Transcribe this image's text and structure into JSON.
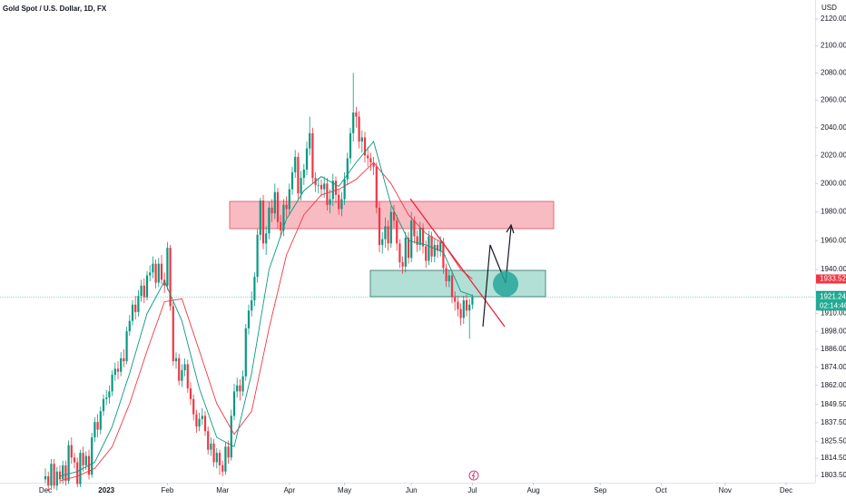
{
  "chart_data": {
    "type": "candlestick",
    "title": "Gold Spot / U.S. Dollar, 1D, FX",
    "y_unit": "USD",
    "log": true,
    "grid": false,
    "up_color": "#089981",
    "down_color": "#f23645",
    "xlim": [
      -15.625,
      265
    ],
    "ylim": [
      1798.9,
      2134.4
    ],
    "xticks": [
      {
        "value": 0,
        "label": "Dec"
      },
      {
        "value": 21,
        "label": "2023"
      },
      {
        "value": 42,
        "label": "Feb"
      },
      {
        "value": 61,
        "label": "Mar"
      },
      {
        "value": 84,
        "label": "Apr"
      },
      {
        "value": 103,
        "label": "May"
      },
      {
        "value": 126,
        "label": "Jun"
      },
      {
        "value": 147,
        "label": "Jul"
      },
      {
        "value": 168,
        "label": "Aug"
      },
      {
        "value": 191,
        "label": "Sep"
      },
      {
        "value": 212,
        "label": "Oct"
      },
      {
        "value": 234,
        "label": "Nov"
      },
      {
        "value": 255,
        "label": "Dec"
      }
    ],
    "yticks": [
      {
        "value": 2120,
        "label": "2120.00"
      },
      {
        "value": 2100,
        "label": "2100.00"
      },
      {
        "value": 2080,
        "label": "2080.00"
      },
      {
        "value": 2060,
        "label": "2060.00"
      },
      {
        "value": 2040,
        "label": "2040.00"
      },
      {
        "value": 2020,
        "label": "2020.00"
      },
      {
        "value": 2000,
        "label": "2000.00"
      },
      {
        "value": 1980,
        "label": "1980.00"
      },
      {
        "value": 1960,
        "label": "1960.00"
      },
      {
        "value": 1940,
        "label": "1940.00"
      },
      {
        "value": 1910,
        "label": "1910.00"
      },
      {
        "value": 1898,
        "label": "1898.00"
      },
      {
        "value": 1886,
        "label": "1886.00"
      },
      {
        "value": 1874,
        "label": "1874.00"
      },
      {
        "value": 1862,
        "label": "1862.00"
      },
      {
        "value": 1849.5,
        "label": "1849.50"
      },
      {
        "value": 1837.5,
        "label": "1837.50"
      },
      {
        "value": 1825.5,
        "label": "1825.50"
      },
      {
        "value": 1814.5,
        "label": "1814.50"
      },
      {
        "value": 1803.5,
        "label": "1803.50"
      }
    ],
    "open": [
      1801,
      1803,
      1797,
      1811,
      1797,
      1806,
      1801,
      1810,
      1800,
      1823,
      1815,
      1812,
      1798,
      1818,
      1810,
      1816,
      1804,
      1828,
      1838,
      1833,
      1845,
      1853,
      1854,
      1858,
      1869,
      1873,
      1871,
      1880,
      1878,
      1898,
      1905,
      1916,
      1911,
      1922,
      1929,
      1921,
      1936,
      1938,
      1944,
      1931,
      1944,
      1933,
      1929,
      1955,
      1915,
      1878,
      1880,
      1865,
      1872,
      1876,
      1860,
      1853,
      1843,
      1835,
      1840,
      1842,
      1832,
      1820,
      1824,
      1812,
      1818,
      1810,
      1806,
      1822,
      1815,
      1842,
      1858,
      1862,
      1858,
      1868,
      1900,
      1912,
      1919,
      1935,
      1964,
      1988,
      1958,
      1965,
      1983,
      1979,
      1994,
      1973,
      1967,
      1985,
      1982,
      1996,
      2008,
      2019,
      1993,
      2004,
      2010,
      2025,
      2036,
      2004,
      1999,
      1999,
      1996,
      2000,
      1985,
      1989,
      2002,
      1992,
      1982,
      1989,
      2003,
      2018,
      2036,
      2051,
      2048,
      2030,
      2033,
      2020,
      2018,
      2015,
      2012,
      1983,
      1957,
      1961,
      1970,
      1958,
      1980,
      1974,
      1958,
      1945,
      1942,
      1962,
      1948,
      1974,
      1963,
      1957,
      1969,
      1956,
      1946,
      1963,
      1949,
      1957,
      1953,
      1959,
      1941,
      1932,
      1936,
      1921,
      1918,
      1913,
      1907,
      1919,
      1912,
      1916
    ],
    "high": [
      1808,
      1806,
      1814,
      1814,
      1809,
      1810,
      1813,
      1813,
      1826,
      1828,
      1818,
      1815,
      1820,
      1822,
      1819,
      1820,
      1831,
      1841,
      1843,
      1848,
      1856,
      1859,
      1862,
      1872,
      1877,
      1878,
      1884,
      1886,
      1901,
      1909,
      1919,
      1922,
      1926,
      1933,
      1934,
      1939,
      1943,
      1949,
      1947,
      1948,
      1950,
      1938,
      1959,
      1957,
      1918,
      1884,
      1883,
      1876,
      1880,
      1879,
      1864,
      1856,
      1846,
      1844,
      1847,
      1845,
      1835,
      1828,
      1827,
      1821,
      1820,
      1813,
      1825,
      1826,
      1846,
      1863,
      1867,
      1866,
      1872,
      1903,
      1916,
      1925,
      1938,
      1968,
      1990,
      1992,
      1970,
      1987,
      1989,
      2000,
      1997,
      1978,
      1989,
      1991,
      2000,
      2012,
      2024,
      2022,
      2009,
      2014,
      2030,
      2048,
      2040,
      2008,
      2004,
      2003,
      2005,
      2004,
      1996,
      2007,
      2005,
      1996,
      1994,
      2008,
      2022,
      2040,
      2080,
      2055,
      2052,
      2038,
      2037,
      2026,
      2022,
      2019,
      2015,
      1987,
      1966,
      1976,
      1974,
      1984,
      1985,
      1978,
      1961,
      1949,
      1966,
      1966,
      1980,
      1977,
      1967,
      1973,
      1972,
      1960,
      1967,
      1966,
      1961,
      1960,
      1963,
      1962,
      1944,
      1940,
      1939,
      1925,
      1922,
      1917,
      1922,
      1923,
      1920,
      1923
    ],
    "low": [
      1797,
      1794,
      1795,
      1795,
      1794,
      1798,
      1798,
      1797,
      1798,
      1811,
      1808,
      1796,
      1796,
      1806,
      1807,
      1801,
      1802,
      1825,
      1828,
      1830,
      1842,
      1849,
      1850,
      1855,
      1865,
      1866,
      1868,
      1874,
      1876,
      1895,
      1902,
      1906,
      1908,
      1918,
      1917,
      1919,
      1932,
      1934,
      1927,
      1928,
      1930,
      1924,
      1926,
      1912,
      1875,
      1873,
      1862,
      1861,
      1868,
      1857,
      1849,
      1839,
      1831,
      1832,
      1836,
      1829,
      1817,
      1816,
      1809,
      1808,
      1804,
      1803,
      1804,
      1811,
      1813,
      1839,
      1854,
      1852,
      1855,
      1865,
      1896,
      1908,
      1915,
      1931,
      1960,
      1954,
      1950,
      1961,
      1973,
      1975,
      1968,
      1962,
      1963,
      1976,
      1978,
      1992,
      2004,
      1989,
      1988,
      1999,
      2006,
      2020,
      2000,
      1994,
      1993,
      1991,
      1990,
      1981,
      1979,
      1984,
      1986,
      1978,
      1977,
      1985,
      1999,
      2014,
      2030,
      2040,
      2025,
      2022,
      2015,
      2012,
      2009,
      2006,
      1979,
      1952,
      1951,
      1955,
      1953,
      1955,
      1969,
      1953,
      1941,
      1937,
      1938,
      1944,
      1945,
      1958,
      1952,
      1953,
      1951,
      1941,
      1943,
      1945,
      1945,
      1948,
      1949,
      1937,
      1928,
      1928,
      1917,
      1912,
      1908,
      1902,
      1903,
      1908,
      1893,
      1913
    ],
    "close": [
      1803,
      1797,
      1811,
      1797,
      1806,
      1801,
      1810,
      1800,
      1823,
      1815,
      1812,
      1798,
      1818,
      1810,
      1816,
      1804,
      1828,
      1838,
      1833,
      1845,
      1853,
      1854,
      1858,
      1869,
      1873,
      1871,
      1880,
      1878,
      1898,
      1905,
      1916,
      1911,
      1922,
      1929,
      1921,
      1936,
      1938,
      1944,
      1931,
      1944,
      1933,
      1929,
      1955,
      1915,
      1878,
      1880,
      1865,
      1872,
      1876,
      1860,
      1853,
      1843,
      1835,
      1840,
      1842,
      1832,
      1820,
      1824,
      1812,
      1818,
      1810,
      1806,
      1822,
      1815,
      1842,
      1858,
      1862,
      1858,
      1868,
      1900,
      1912,
      1919,
      1935,
      1964,
      1988,
      1958,
      1965,
      1983,
      1979,
      1994,
      1973,
      1967,
      1985,
      1982,
      1996,
      2008,
      2019,
      1993,
      2004,
      2010,
      2025,
      2036,
      2004,
      1999,
      1999,
      1996,
      2000,
      1985,
      1989,
      2002,
      1992,
      1982,
      1989,
      2003,
      2018,
      2036,
      2051,
      2048,
      2030,
      2033,
      2020,
      2018,
      2015,
      2012,
      1983,
      1957,
      1961,
      1970,
      1958,
      1980,
      1974,
      1958,
      1945,
      1942,
      1962,
      1948,
      1974,
      1963,
      1957,
      1969,
      1956,
      1946,
      1963,
      1949,
      1957,
      1953,
      1959,
      1941,
      1932,
      1936,
      1921,
      1918,
      1913,
      1907,
      1919,
      1912,
      1916,
      1921.24
    ],
    "countdown": "02:14:46",
    "series": [
      {
        "color": "#f23645",
        "x": [
          5,
          11,
          17,
          23,
          29,
          35,
          41,
          47,
          53,
          59,
          65,
          71,
          77,
          83,
          89,
          95,
          101,
          107,
          113,
          119,
          125,
          131,
          137,
          143,
          147
        ],
        "values": [
          1800,
          1803,
          1808,
          1822,
          1850,
          1885,
          1918,
          1920,
          1885,
          1850,
          1830,
          1845,
          1900,
          1950,
          1978,
          1992,
          1996,
          2003,
          2015,
          2000,
          1978,
          1965,
          1958,
          1940,
          1933.52
        ]
      },
      {
        "color": "#089981",
        "x": [
          5,
          11,
          17,
          23,
          29,
          35,
          41,
          47,
          53,
          59,
          65,
          71,
          77,
          83,
          89,
          95,
          101,
          107,
          113,
          119,
          125,
          131,
          137,
          143,
          147
        ],
        "values": [
          1803,
          1806,
          1812,
          1835,
          1870,
          1910,
          1932,
          1905,
          1860,
          1828,
          1822,
          1870,
          1940,
          1975,
          1995,
          2005,
          1998,
          2015,
          2030,
          1985,
          1960,
          1957,
          1952,
          1925,
          1922.22
        ]
      }
    ]
  }
}
